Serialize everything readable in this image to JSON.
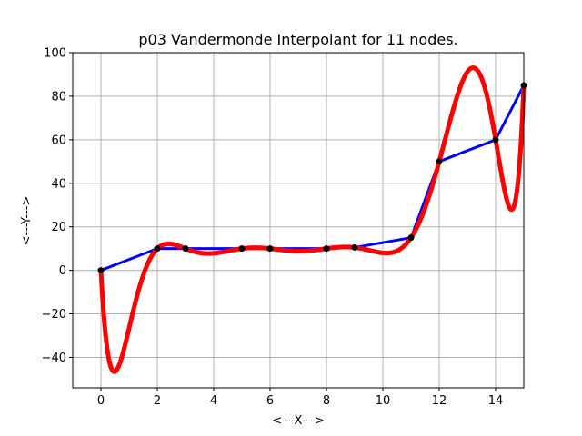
{
  "chart_data": {
    "type": "line",
    "title": "p03 Vandermonde Interpolant for 11 nodes.",
    "xlabel": "<---X--->",
    "ylabel": "<---Y--->",
    "xlim": [
      -1.0,
      15.0
    ],
    "ylim": [
      -54.0,
      100.0
    ],
    "grid": true,
    "xticks": [
      0,
      2,
      4,
      6,
      8,
      10,
      12,
      14
    ],
    "xtick_labels": [
      "0",
      "2",
      "4",
      "6",
      "8",
      "10",
      "12",
      "14"
    ],
    "yticks": [
      -40,
      -20,
      0,
      20,
      40,
      60,
      80,
      100
    ],
    "ytick_labels": [
      "−40",
      "−20",
      "0",
      "20",
      "40",
      "60",
      "80",
      "100"
    ],
    "nodes": {
      "x": [
        0,
        2,
        3,
        5,
        6,
        8,
        9,
        11,
        12,
        14,
        15
      ],
      "y": [
        0,
        10,
        10,
        10,
        10,
        10,
        10.5,
        15,
        50,
        60,
        85
      ]
    },
    "series": [
      {
        "color": "#0000ff",
        "role": "piecewise-linear through nodes"
      },
      {
        "color": "#ff0000",
        "role": "polynomial interpolant"
      }
    ],
    "marker_color": "#000000"
  }
}
